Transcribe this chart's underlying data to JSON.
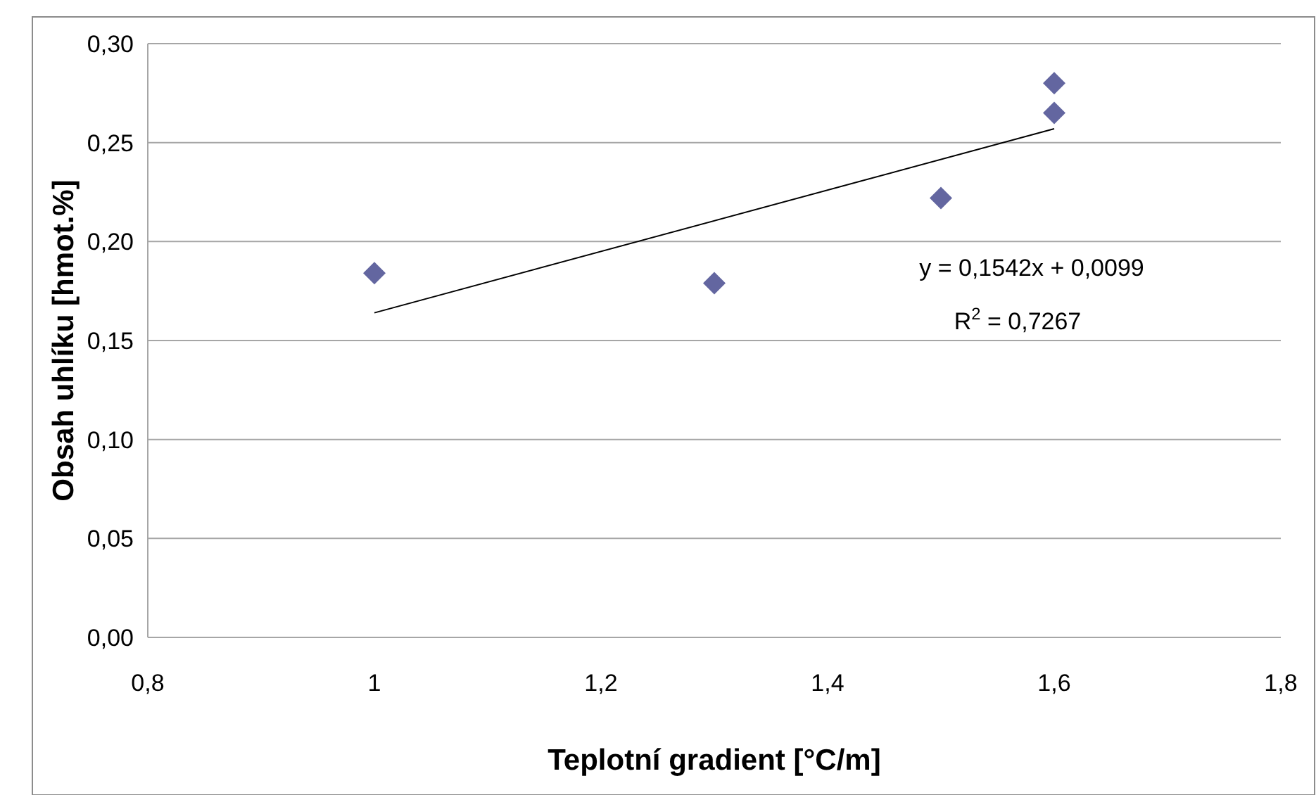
{
  "chart_data": {
    "type": "scatter",
    "xlabel": "Teplotní gradient [°C/m]",
    "ylabel": "Obsah uhlíku [hmot.%]",
    "xlim": [
      0.8,
      1.8
    ],
    "xticks": [
      {
        "value": 0.8,
        "label": "0,8"
      },
      1,
      {
        "value": 1.2,
        "label": "1,2"
      },
      {
        "value": 1.4,
        "label": "1,4"
      },
      {
        "value": 1.6,
        "label": "1,6"
      },
      {
        "value": 1.8,
        "label": "1,8"
      }
    ],
    "ylim": [
      0,
      0.3
    ],
    "yticks": [
      {
        "value": 0,
        "label": "0,00"
      },
      {
        "value": 0.05,
        "label": "0,05"
      },
      {
        "value": 0.1,
        "label": "0,10"
      },
      {
        "value": 0.15,
        "label": "0,15"
      },
      {
        "value": 0.2,
        "label": "0,20"
      },
      {
        "value": 0.25,
        "label": "0,25"
      },
      {
        "value": 0.3,
        "label": "0,30"
      }
    ],
    "grid": "y",
    "marker": "diamond",
    "series": [
      {
        "color": "#6366a0",
        "x": [
          1,
          1.3,
          1.5,
          1.6,
          1.6
        ],
        "values": [
          0.184,
          0.179,
          0.222,
          0.265,
          0.28
        ]
      },
      {
        "type": "line",
        "color": "#000000",
        "x": [
          1,
          1.6
        ],
        "values": [
          0.164,
          0.257
        ],
        "marker": "none",
        "line_style": "solid"
      }
    ],
    "annotations": [
      "y = 0,1542x + 0,0099",
      "R$^{2}$ = 0,7267"
    ]
  }
}
